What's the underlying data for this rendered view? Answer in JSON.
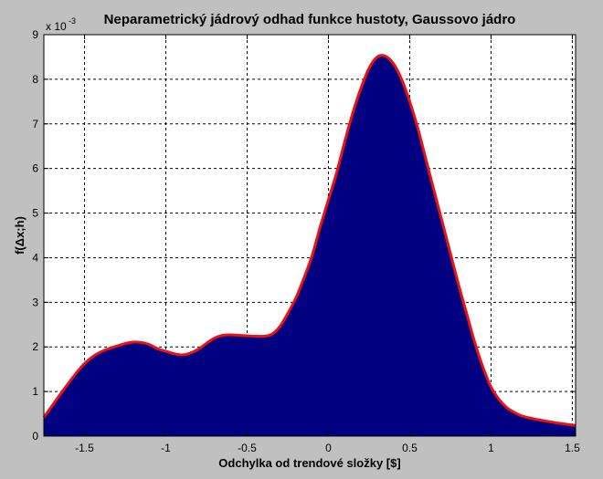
{
  "chart_data": {
    "type": "area",
    "title": "Neparametrický jádrový odhad funkce hustoty, Gaussovo jádro",
    "xlabel": "Odchylka od trendové složky [$]",
    "ylabel": "f(Δx;h)",
    "y_exponent_label": "x 10",
    "y_exponent_power": "-3",
    "xlim": [
      -1.75,
      1.52
    ],
    "ylim": [
      0,
      9
    ],
    "y_scale_factor": 0.001,
    "grid": true,
    "fill_color": "#000080",
    "line_color": "#ee1111",
    "xticks": [
      -1.5,
      -1,
      -0.5,
      0,
      0.5,
      1,
      1.5
    ],
    "xtick_labels": [
      "-1.5",
      "-1",
      "-0.5",
      "0",
      "0.5",
      "1",
      "1.5"
    ],
    "yticks": [
      0,
      1,
      2,
      3,
      4,
      5,
      6,
      7,
      8,
      9
    ],
    "ytick_labels": [
      "0",
      "1",
      "2",
      "3",
      "4",
      "5",
      "6",
      "7",
      "8",
      "9"
    ],
    "x": [
      -1.75,
      -1.68,
      -1.6,
      -1.52,
      -1.45,
      -1.38,
      -1.3,
      -1.22,
      -1.15,
      -1.1,
      -1.05,
      -1.0,
      -0.95,
      -0.9,
      -0.85,
      -0.8,
      -0.75,
      -0.7,
      -0.65,
      -0.6,
      -0.55,
      -0.5,
      -0.45,
      -0.4,
      -0.35,
      -0.3,
      -0.25,
      -0.2,
      -0.15,
      -0.1,
      -0.05,
      0.0,
      0.05,
      0.1,
      0.15,
      0.2,
      0.25,
      0.3,
      0.35,
      0.4,
      0.45,
      0.5,
      0.55,
      0.6,
      0.65,
      0.7,
      0.75,
      0.8,
      0.85,
      0.9,
      0.95,
      1.0,
      1.05,
      1.1,
      1.15,
      1.2,
      1.3,
      1.4,
      1.52
    ],
    "y": [
      0.42,
      0.78,
      1.18,
      1.55,
      1.78,
      1.92,
      2.02,
      2.1,
      2.1,
      2.05,
      1.96,
      1.9,
      1.85,
      1.82,
      1.86,
      1.95,
      2.08,
      2.2,
      2.26,
      2.27,
      2.26,
      2.25,
      2.24,
      2.24,
      2.28,
      2.45,
      2.75,
      3.1,
      3.55,
      4.05,
      4.7,
      5.3,
      5.9,
      6.6,
      7.25,
      7.8,
      8.25,
      8.5,
      8.52,
      8.35,
      8.0,
      7.5,
      6.9,
      6.2,
      5.5,
      4.8,
      4.1,
      3.4,
      2.75,
      2.1,
      1.55,
      1.1,
      0.82,
      0.63,
      0.52,
      0.44,
      0.36,
      0.3,
      0.24
    ]
  }
}
